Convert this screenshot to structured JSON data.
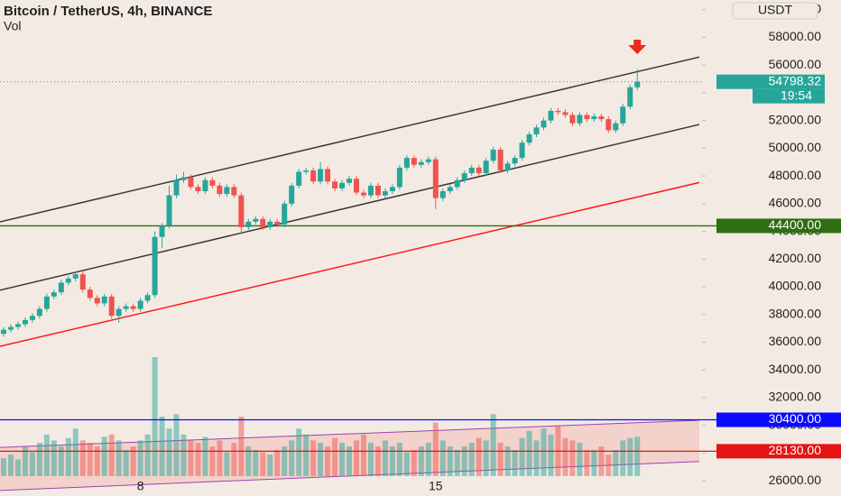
{
  "chart_data": {
    "type": "candlestick",
    "title": "Bitcoin / TetherUS, 4h, BINANCE",
    "subtitle": "Vol",
    "currency": "USDT",
    "categories": [
      null,
      null,
      null,
      null,
      null,
      null,
      null,
      null,
      null,
      null,
      null,
      null,
      null,
      null,
      null,
      null,
      null,
      null,
      null,
      "8",
      null,
      null,
      null,
      null,
      null,
      null,
      null,
      null,
      null,
      null,
      null,
      null,
      null,
      null,
      null,
      null,
      null,
      null,
      null,
      null,
      null,
      null,
      null,
      null,
      null,
      null,
      null,
      null,
      null,
      null,
      null,
      null,
      null,
      null,
      null,
      null,
      null,
      null,
      null,
      null,
      "15",
      null,
      null,
      null,
      null,
      null,
      null,
      null,
      null,
      null,
      null,
      null,
      null,
      null,
      null,
      null,
      null,
      null,
      null,
      null,
      null,
      null,
      null,
      null,
      null,
      null,
      null,
      null,
      null
    ],
    "open": [
      36600,
      36900,
      37100,
      37300,
      37600,
      37900,
      38400,
      39300,
      39600,
      40300,
      40600,
      40900,
      39800,
      39200,
      38800,
      39300,
      37900,
      38400,
      38600,
      38400,
      39000,
      39400,
      43600,
      44400,
      46600,
      47700,
      47900,
      47200,
      46900,
      47700,
      47300,
      46700,
      47200,
      46600,
      44300,
      44700,
      44900,
      44300,
      44700,
      44500,
      46000,
      47300,
      48300,
      48400,
      47600,
      48500,
      47600,
      47100,
      47500,
      47800,
      46800,
      46600,
      47300,
      46600,
      46900,
      47200,
      48600,
      49300,
      48800,
      49000,
      49200,
      46400,
      46900,
      47200,
      47700,
      48200,
      48600,
      48200,
      49100,
      49900,
      48400,
      48900,
      49300,
      50400,
      51000,
      51500,
      52000,
      52700,
      52600,
      52400,
      51800,
      52400,
      52100,
      52300,
      52100,
      51300,
      51800,
      53000,
      54400
    ],
    "high": [
      37100,
      37300,
      37500,
      37800,
      38100,
      38600,
      39500,
      39800,
      40500,
      40800,
      41100,
      41100,
      40000,
      39400,
      39500,
      39500,
      38600,
      38800,
      38800,
      39200,
      39600,
      44000,
      44600,
      47300,
      48100,
      48300,
      48100,
      47400,
      47900,
      47900,
      47500,
      47400,
      47400,
      46800,
      44900,
      45100,
      45100,
      44900,
      44900,
      46200,
      47500,
      48500,
      48600,
      48600,
      49000,
      48700,
      47800,
      47700,
      48000,
      48000,
      47000,
      47500,
      47500,
      47100,
      47400,
      48800,
      49500,
      49500,
      49200,
      49400,
      49400,
      47100,
      47400,
      47900,
      48400,
      48800,
      48800,
      49300,
      50100,
      50100,
      49100,
      49500,
      50600,
      51200,
      51700,
      52200,
      52900,
      52900,
      52800,
      52600,
      52600,
      52600,
      52500,
      52500,
      52300,
      52000,
      53200,
      54600,
      55700
    ],
    "low": [
      36400,
      36700,
      36900,
      37100,
      37400,
      37700,
      38200,
      39100,
      39400,
      40100,
      40400,
      39600,
      39000,
      38600,
      38600,
      37700,
      37400,
      38200,
      38200,
      38200,
      38800,
      39200,
      42800,
      44200,
      46400,
      47500,
      47000,
      46700,
      46700,
      47100,
      46500,
      46500,
      46400,
      43800,
      44100,
      44500,
      44100,
      44100,
      44300,
      44300,
      45800,
      47100,
      48100,
      47400,
      47400,
      47400,
      46900,
      46900,
      47300,
      46600,
      46400,
      46400,
      46400,
      46400,
      46700,
      47000,
      48400,
      48600,
      48600,
      48800,
      45600,
      46200,
      46700,
      47000,
      47500,
      48000,
      48000,
      48000,
      48900,
      48200,
      48200,
      48700,
      49100,
      50200,
      50800,
      51300,
      51800,
      52400,
      52200,
      51600,
      51600,
      51900,
      51900,
      51900,
      51100,
      51100,
      51600,
      52800,
      54200
    ],
    "close": [
      36900,
      37100,
      37300,
      37600,
      37900,
      38400,
      39300,
      39600,
      40300,
      40600,
      40900,
      39800,
      39200,
      38800,
      39300,
      37900,
      38400,
      38600,
      38400,
      39000,
      39400,
      43600,
      44400,
      46600,
      47700,
      47900,
      47200,
      46900,
      47700,
      47300,
      46700,
      47200,
      46600,
      44300,
      44700,
      44900,
      44300,
      44700,
      44500,
      46000,
      47300,
      48300,
      48400,
      47600,
      48500,
      47600,
      47100,
      47500,
      47800,
      46800,
      46600,
      47300,
      46600,
      46900,
      47200,
      48600,
      49300,
      48800,
      49000,
      49200,
      46400,
      46900,
      47200,
      47700,
      48200,
      48600,
      48200,
      49100,
      49900,
      48400,
      48900,
      49300,
      50400,
      51000,
      51500,
      52000,
      52700,
      52600,
      52400,
      51800,
      52400,
      52100,
      52300,
      52100,
      51300,
      51800,
      53000,
      54400,
      54800
    ],
    "volume": [
      15,
      18,
      14,
      25,
      20,
      28,
      35,
      30,
      25,
      32,
      40,
      30,
      28,
      25,
      33,
      35,
      30,
      22,
      25,
      30,
      35,
      100,
      50,
      40,
      52,
      35,
      30,
      28,
      33,
      25,
      30,
      20,
      28,
      50,
      25,
      22,
      20,
      18,
      22,
      25,
      30,
      40,
      35,
      30,
      28,
      25,
      32,
      28,
      25,
      30,
      35,
      28,
      25,
      30,
      25,
      28,
      20,
      22,
      25,
      28,
      45,
      30,
      25,
      22,
      25,
      28,
      32,
      30,
      52,
      28,
      25,
      22,
      32,
      38,
      30,
      40,
      35,
      42,
      32,
      30,
      28,
      22,
      22,
      25,
      18,
      22,
      30,
      32,
      33
    ],
    "volume_lim": [
      0,
      100
    ],
    "colors": {
      "up": "#26a69a",
      "down": "#ef5350"
    },
    "ylim": [
      24900,
      60700
    ],
    "yticks": [
      {
        "value": 26000,
        "label": "26000.00"
      },
      {
        "value": 28000,
        "label": "28000.00"
      },
      {
        "value": 30000,
        "label": "30000.00"
      },
      {
        "value": 32000,
        "label": "32000.00"
      },
      {
        "value": 34000,
        "label": "34000.00"
      },
      {
        "value": 36000,
        "label": "36000.00"
      },
      {
        "value": 38000,
        "label": "38000.00"
      },
      {
        "value": 40000,
        "label": "40000.00"
      },
      {
        "value": 42000,
        "label": "42000.00"
      },
      {
        "value": 44000,
        "label": "44000.00"
      },
      {
        "value": 46000,
        "label": "46000.00"
      },
      {
        "value": 48000,
        "label": "48000.00"
      },
      {
        "value": 50000,
        "label": "50000.00"
      },
      {
        "value": 52000,
        "label": "52000.00"
      },
      {
        "value": 54000,
        "label": "54000.00"
      },
      {
        "value": 56000,
        "label": "56000.00"
      },
      {
        "value": 58000,
        "label": "58000.00"
      },
      {
        "value": 60000,
        "label": "60000.00"
      }
    ],
    "trendlines": [
      {
        "color": "#3a3a3a",
        "from": 44689,
        "to": 56581
      },
      {
        "color": "#3a3a3a",
        "from": 39757,
        "to": 51716
      },
      {
        "color": "#ff1a1a",
        "from": 35703,
        "to": 47527
      }
    ],
    "volume_channel": {
      "color": "#a040b0",
      "upper": [
        28405,
        30365
      ],
      "lower": [
        25297,
        27392
      ]
    },
    "levels": [
      {
        "value": 44400,
        "label": "44400.00",
        "color": "#2f6e12"
      },
      {
        "value": 30400,
        "label": "30400.00",
        "color": "#0a0aff"
      },
      {
        "value": 28130,
        "label": "28130.00",
        "color": "#e51414"
      }
    ],
    "last_price": 54798.32,
    "last_price_color": "#26a69a",
    "countdown": "19:54"
  }
}
